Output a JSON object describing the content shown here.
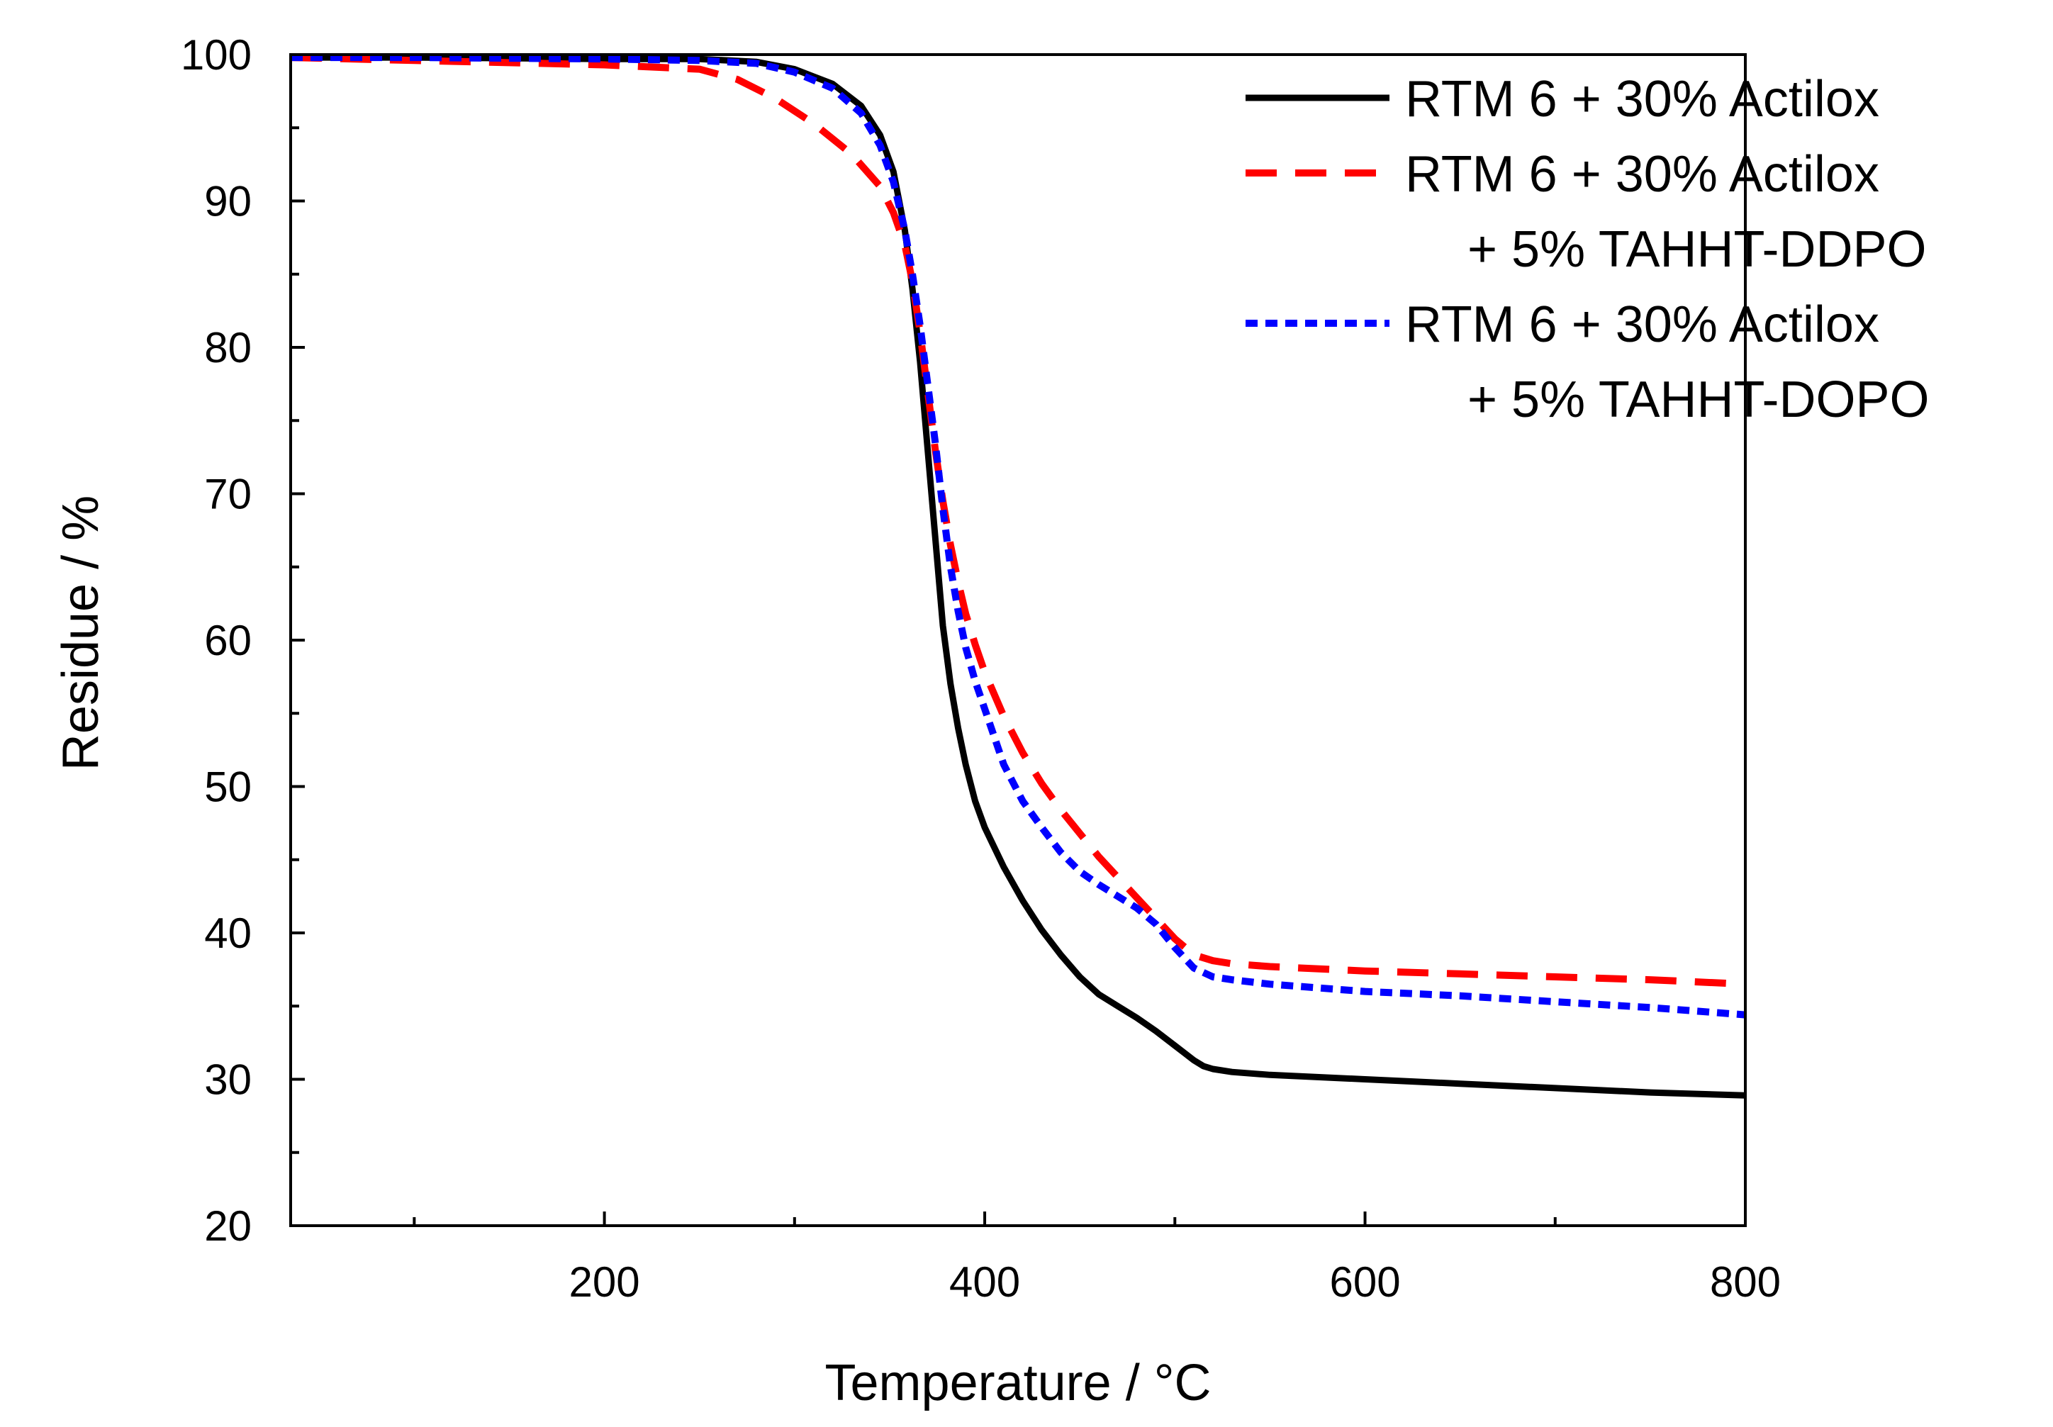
{
  "chart_data": {
    "type": "line",
    "title": "",
    "xlabel": "Temperature / °C",
    "ylabel": "Residue / %",
    "xlim": [
      35,
      800
    ],
    "ylim": [
      20,
      100
    ],
    "xticks": [
      200,
      400,
      600,
      800
    ],
    "xticks_minor": [
      100,
      300,
      500,
      700
    ],
    "yticks": [
      20,
      30,
      40,
      50,
      60,
      70,
      80,
      90,
      100
    ],
    "grid": false,
    "legend_position": "top-right",
    "series": [
      {
        "name": "RTM 6 + 30% Actilox",
        "name_lines": [
          "RTM 6 + 30% Actilox"
        ],
        "color": "#000000",
        "dash": "solid",
        "x": [
          35,
          100,
          200,
          250,
          280,
          300,
          320,
          335,
          345,
          352,
          358,
          362,
          366,
          370,
          374,
          378,
          382,
          386,
          390,
          395,
          400,
          410,
          420,
          430,
          440,
          450,
          460,
          470,
          480,
          490,
          500,
          505,
          510,
          515,
          520,
          530,
          550,
          600,
          650,
          700,
          750,
          800
        ],
        "y": [
          99.8,
          99.8,
          99.7,
          99.7,
          99.5,
          99.0,
          98.0,
          96.5,
          94.5,
          92.0,
          88.0,
          84.0,
          79.0,
          73.0,
          67.0,
          61.0,
          57.0,
          54.0,
          51.5,
          49.0,
          47.2,
          44.5,
          42.2,
          40.2,
          38.5,
          37.0,
          35.8,
          35.0,
          34.2,
          33.3,
          32.3,
          31.8,
          31.3,
          30.9,
          30.7,
          30.5,
          30.3,
          30.0,
          29.7,
          29.4,
          29.1,
          28.9
        ]
      },
      {
        "name": "RTM 6 + 30% Actilox + 5% TAHHT-DDPO",
        "name_lines": [
          "RTM 6 + 30% Actilox",
          "+ 5% TAHHT-DDPO"
        ],
        "color": "#ff0000",
        "dash": "dashed",
        "x": [
          35,
          100,
          200,
          250,
          270,
          290,
          310,
          330,
          345,
          352,
          358,
          362,
          366,
          370,
          374,
          378,
          382,
          386,
          390,
          395,
          400,
          410,
          420,
          430,
          440,
          450,
          460,
          470,
          480,
          490,
          500,
          510,
          520,
          530,
          550,
          600,
          650,
          700,
          750,
          800
        ],
        "y": [
          99.8,
          99.6,
          99.3,
          99.0,
          98.3,
          97.0,
          95.3,
          93.2,
          91.0,
          89.2,
          87.0,
          84.5,
          81.0,
          77.0,
          73.0,
          69.5,
          66.5,
          64.0,
          61.8,
          59.7,
          57.8,
          54.8,
          52.3,
          50.2,
          48.4,
          46.8,
          45.2,
          43.8,
          42.4,
          41.0,
          39.6,
          38.5,
          38.1,
          37.9,
          37.7,
          37.4,
          37.2,
          37.0,
          36.8,
          36.5
        ]
      },
      {
        "name": "RTM 6 + 30% Actilox + 5% TAHHT-DOPO",
        "name_lines": [
          "RTM 6 + 30% Actilox",
          "+ 5% TAHHT-DOPO"
        ],
        "color": "#0000ff",
        "dash": "dotted",
        "x": [
          35,
          100,
          200,
          250,
          280,
          300,
          320,
          335,
          345,
          352,
          358,
          362,
          366,
          370,
          374,
          378,
          382,
          386,
          390,
          395,
          400,
          410,
          420,
          430,
          440,
          450,
          460,
          470,
          480,
          490,
          500,
          510,
          520,
          530,
          550,
          600,
          650,
          700,
          750,
          800
        ],
        "y": [
          99.8,
          99.8,
          99.7,
          99.6,
          99.4,
          98.8,
          97.7,
          96.0,
          93.8,
          91.3,
          88.0,
          85.0,
          81.5,
          77.5,
          73.5,
          69.0,
          65.0,
          62.0,
          59.5,
          57.2,
          55.3,
          51.5,
          49.0,
          47.2,
          45.5,
          44.2,
          43.3,
          42.5,
          41.7,
          40.6,
          39.0,
          37.6,
          37.0,
          36.8,
          36.5,
          36.0,
          35.7,
          35.3,
          34.9,
          34.4
        ]
      }
    ]
  }
}
